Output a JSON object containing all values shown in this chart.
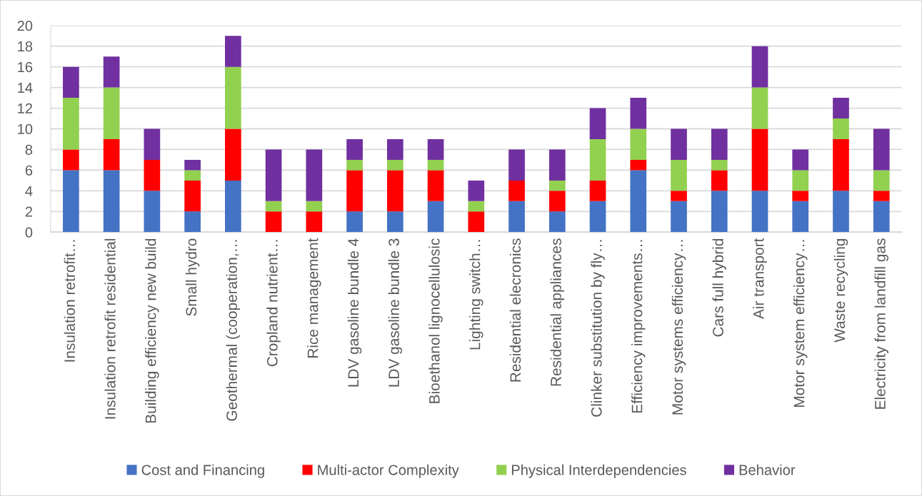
{
  "chart_data": {
    "type": "bar",
    "stacked": true,
    "categories": [
      "Insulation retrofit…",
      "Insulation retrofit residential",
      "Building efficiency new build",
      "Small hydro",
      "Geothermal (cooperation,…",
      "Cropland nutrient…",
      "Rice management",
      "LDV gasoline bundle 4",
      "LDV gasoline bundle 3",
      "Bioethanol lignocellulosic",
      "Lighting switch…",
      "Residential elecronics",
      "Residential appliances",
      "Clinker substitution by fly…",
      "Efficiency improvements…",
      "Motor systems efficiency…",
      "Cars full hybrid",
      "Air transport",
      "Motor system efficiency…",
      "Waste recycling",
      "Electricity from landfill gas"
    ],
    "series": [
      {
        "name": "Cost and Financing",
        "color": "#4472c4",
        "values": [
          6,
          6,
          4,
          2,
          5,
          0,
          0,
          2,
          2,
          3,
          0,
          3,
          2,
          3,
          6,
          3,
          4,
          4,
          3,
          4,
          3
        ]
      },
      {
        "name": "Multi-actor Complexity",
        "color": "#ff0000",
        "values": [
          2,
          3,
          3,
          3,
          5,
          2,
          2,
          4,
          4,
          3,
          2,
          2,
          2,
          2,
          1,
          1,
          2,
          6,
          1,
          5,
          1
        ]
      },
      {
        "name": "Physical Interdependencies",
        "color": "#92d050",
        "values": [
          5,
          5,
          0,
          1,
          6,
          1,
          1,
          1,
          1,
          1,
          1,
          0,
          1,
          4,
          3,
          3,
          1,
          4,
          2,
          2,
          2
        ]
      },
      {
        "name": "Behavior",
        "color": "#7030a0",
        "values": [
          3,
          3,
          3,
          1,
          3,
          5,
          5,
          2,
          2,
          2,
          2,
          3,
          3,
          3,
          3,
          3,
          3,
          4,
          2,
          2,
          4
        ]
      }
    ],
    "ylim": [
      0,
      20
    ],
    "yticks": [
      0,
      2,
      4,
      6,
      8,
      10,
      12,
      14,
      16,
      18,
      20
    ],
    "grid": "y",
    "legend": "bottom"
  }
}
